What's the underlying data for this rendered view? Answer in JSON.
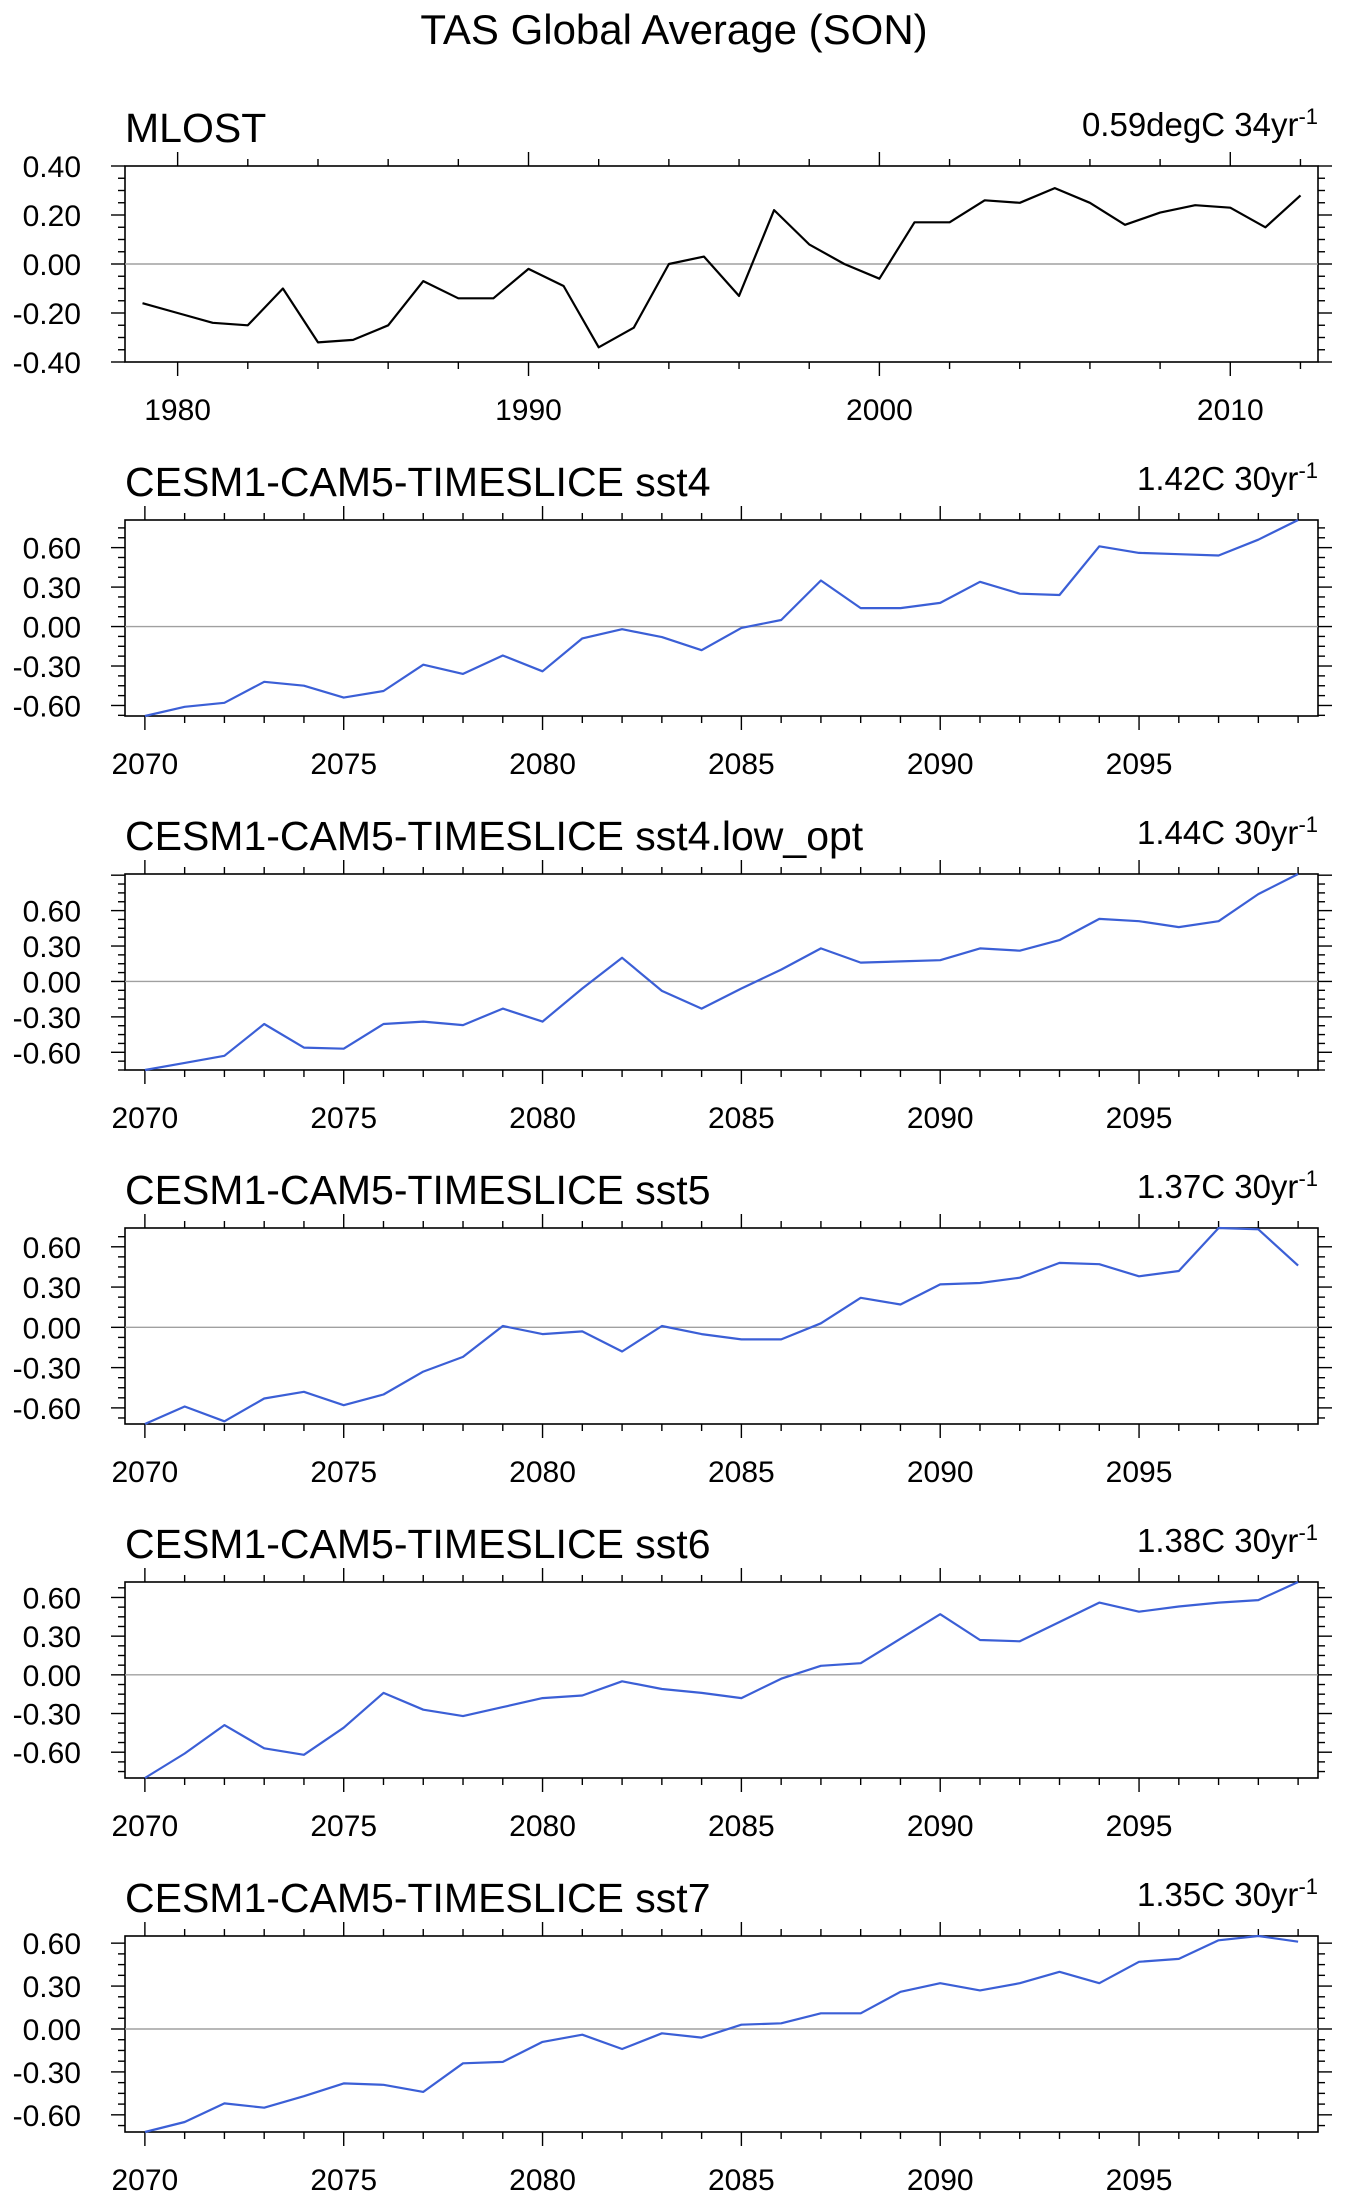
{
  "figure": {
    "title": "TAS Global Average (SON)"
  },
  "colors": {
    "obs_line": "#000000",
    "model_line": "#3b5fd6",
    "zero_line": "#a0a0a0",
    "axis": "#000000"
  },
  "chart_data": [
    {
      "type": "line",
      "title": "MLOST",
      "trend_label": "0.59degC 34yr",
      "trend_exponent": "-1",
      "xlabel": "",
      "ylabel": "",
      "xlim": [
        1978.5,
        2012.5
      ],
      "ylim": [
        -0.4,
        0.4
      ],
      "xticks": [
        1980,
        1990,
        2000,
        2010
      ],
      "yticks": [
        -0.4,
        -0.2,
        0.0,
        0.2,
        0.4
      ],
      "ytick_labels": [
        "-0.40",
        "-0.20",
        "0.00",
        "0.20",
        "0.40"
      ],
      "line_color_key": "obs_line",
      "series": [
        {
          "x": [
            1979,
            1980,
            1981,
            1982,
            1983,
            1984,
            1985,
            1986,
            1987,
            1988,
            1989,
            1990,
            1991,
            1992,
            1993,
            1994,
            1995,
            1996,
            1997,
            1998,
            1999,
            2000,
            2001,
            2002,
            2003,
            2004,
            2005,
            2006,
            2007,
            2008,
            2009,
            2010,
            2011,
            2012
          ],
          "values": [
            -0.16,
            -0.2,
            -0.24,
            -0.25,
            -0.1,
            -0.32,
            -0.31,
            -0.25,
            -0.07,
            -0.14,
            -0.14,
            -0.02,
            -0.09,
            -0.34,
            -0.26,
            0.0,
            0.03,
            -0.13,
            0.22,
            0.08,
            0.0,
            -0.06,
            0.17,
            0.17,
            0.26,
            0.25,
            0.31,
            0.25,
            0.16,
            0.21,
            0.24,
            0.23,
            0.15,
            0.28
          ]
        }
      ]
    },
    {
      "type": "line",
      "title": "CESM1-CAM5-TIMESLICE sst4",
      "trend_label": "1.42C 30yr",
      "trend_exponent": "-1",
      "xlabel": "",
      "ylabel": "",
      "xlim": [
        2069.5,
        2099.5
      ],
      "ylim": [
        -0.68,
        0.81
      ],
      "xticks": [
        2070,
        2075,
        2080,
        2085,
        2090,
        2095
      ],
      "yticks": [
        -0.6,
        -0.3,
        0.0,
        0.3,
        0.6
      ],
      "ytick_labels": [
        "-0.60",
        "-0.30",
        "0.00",
        "0.30",
        "0.60"
      ],
      "line_color_key": "model_line",
      "series": [
        {
          "x": [
            2070,
            2071,
            2072,
            2073,
            2074,
            2075,
            2076,
            2077,
            2078,
            2079,
            2080,
            2081,
            2082,
            2083,
            2084,
            2085,
            2086,
            2087,
            2088,
            2089,
            2090,
            2091,
            2092,
            2093,
            2094,
            2095,
            2096,
            2097,
            2098,
            2099
          ],
          "values": [
            -0.68,
            -0.61,
            -0.58,
            -0.42,
            -0.45,
            -0.54,
            -0.49,
            -0.29,
            -0.36,
            -0.22,
            -0.34,
            -0.09,
            -0.02,
            -0.08,
            -0.18,
            -0.01,
            0.05,
            0.35,
            0.14,
            0.14,
            0.18,
            0.34,
            0.25,
            0.24,
            0.61,
            0.56,
            0.55,
            0.54,
            0.66,
            0.81
          ]
        }
      ]
    },
    {
      "type": "line",
      "title": "CESM1-CAM5-TIMESLICE sst4.low_opt",
      "trend_label": "1.44C 30yr",
      "trend_exponent": "-1",
      "xlabel": "",
      "ylabel": "",
      "xlim": [
        2069.5,
        2099.5
      ],
      "ylim": [
        -0.75,
        0.91
      ],
      "xticks": [
        2070,
        2075,
        2080,
        2085,
        2090,
        2095
      ],
      "yticks": [
        -0.6,
        -0.3,
        0.0,
        0.3,
        0.6
      ],
      "ytick_labels": [
        "-0.60",
        "-0.30",
        "0.00",
        "0.30",
        "0.60"
      ],
      "line_color_key": "model_line",
      "series": [
        {
          "x": [
            2070,
            2071,
            2072,
            2073,
            2074,
            2075,
            2076,
            2077,
            2078,
            2079,
            2080,
            2081,
            2082,
            2083,
            2084,
            2085,
            2086,
            2087,
            2088,
            2089,
            2090,
            2091,
            2092,
            2093,
            2094,
            2095,
            2096,
            2097,
            2098,
            2099
          ],
          "values": [
            -0.75,
            -0.69,
            -0.63,
            -0.36,
            -0.56,
            -0.57,
            -0.36,
            -0.34,
            -0.37,
            -0.23,
            -0.34,
            -0.06,
            0.2,
            -0.08,
            -0.23,
            -0.06,
            0.1,
            0.28,
            0.16,
            0.17,
            0.18,
            0.28,
            0.26,
            0.35,
            0.53,
            0.51,
            0.46,
            0.51,
            0.74,
            0.91
          ]
        }
      ]
    },
    {
      "type": "line",
      "title": "CESM1-CAM5-TIMESLICE sst5",
      "trend_label": "1.37C 30yr",
      "trend_exponent": "-1",
      "xlabel": "",
      "ylabel": "",
      "xlim": [
        2069.5,
        2099.5
      ],
      "ylim": [
        -0.72,
        0.74
      ],
      "xticks": [
        2070,
        2075,
        2080,
        2085,
        2090,
        2095
      ],
      "yticks": [
        -0.6,
        -0.3,
        0.0,
        0.3,
        0.6
      ],
      "ytick_labels": [
        "-0.60",
        "-0.30",
        "0.00",
        "0.30",
        "0.60"
      ],
      "line_color_key": "model_line",
      "series": [
        {
          "x": [
            2070,
            2071,
            2072,
            2073,
            2074,
            2075,
            2076,
            2077,
            2078,
            2079,
            2080,
            2081,
            2082,
            2083,
            2084,
            2085,
            2086,
            2087,
            2088,
            2089,
            2090,
            2091,
            2092,
            2093,
            2094,
            2095,
            2096,
            2097,
            2098,
            2099
          ],
          "values": [
            -0.72,
            -0.59,
            -0.7,
            -0.53,
            -0.48,
            -0.58,
            -0.5,
            -0.33,
            -0.22,
            0.01,
            -0.05,
            -0.03,
            -0.18,
            0.01,
            -0.05,
            -0.09,
            -0.09,
            0.03,
            0.22,
            0.17,
            0.32,
            0.33,
            0.37,
            0.48,
            0.47,
            0.38,
            0.42,
            0.74,
            0.73,
            0.46
          ]
        }
      ]
    },
    {
      "type": "line",
      "title": "CESM1-CAM5-TIMESLICE sst6",
      "trend_label": "1.38C 30yr",
      "trend_exponent": "-1",
      "xlabel": "",
      "ylabel": "",
      "xlim": [
        2069.5,
        2099.5
      ],
      "ylim": [
        -0.8,
        0.72
      ],
      "xticks": [
        2070,
        2075,
        2080,
        2085,
        2090,
        2095
      ],
      "yticks": [
        -0.6,
        -0.3,
        0.0,
        0.3,
        0.6
      ],
      "ytick_labels": [
        "-0.60",
        "-0.30",
        "0.00",
        "0.30",
        "0.60"
      ],
      "line_color_key": "model_line",
      "series": [
        {
          "x": [
            2070,
            2071,
            2072,
            2073,
            2074,
            2075,
            2076,
            2077,
            2078,
            2079,
            2080,
            2081,
            2082,
            2083,
            2084,
            2085,
            2086,
            2087,
            2088,
            2089,
            2090,
            2091,
            2092,
            2093,
            2094,
            2095,
            2096,
            2097,
            2098,
            2099
          ],
          "values": [
            -0.8,
            -0.61,
            -0.39,
            -0.57,
            -0.62,
            -0.41,
            -0.14,
            -0.27,
            -0.32,
            -0.25,
            -0.18,
            -0.16,
            -0.05,
            -0.11,
            -0.14,
            -0.18,
            -0.03,
            0.07,
            0.09,
            0.28,
            0.47,
            0.27,
            0.26,
            0.41,
            0.56,
            0.49,
            0.53,
            0.56,
            0.58,
            0.72
          ]
        }
      ]
    },
    {
      "type": "line",
      "title": "CESM1-CAM5-TIMESLICE sst7",
      "trend_label": "1.35C 30yr",
      "trend_exponent": "-1",
      "xlabel": "",
      "ylabel": "",
      "xlim": [
        2069.5,
        2099.5
      ],
      "ylim": [
        -0.72,
        0.65
      ],
      "xticks": [
        2070,
        2075,
        2080,
        2085,
        2090,
        2095
      ],
      "yticks": [
        -0.6,
        -0.3,
        0.0,
        0.3,
        0.6
      ],
      "ytick_labels": [
        "-0.60",
        "-0.30",
        "0.00",
        "0.30",
        "0.60"
      ],
      "line_color_key": "model_line",
      "series": [
        {
          "x": [
            2070,
            2071,
            2072,
            2073,
            2074,
            2075,
            2076,
            2077,
            2078,
            2079,
            2080,
            2081,
            2082,
            2083,
            2084,
            2085,
            2086,
            2087,
            2088,
            2089,
            2090,
            2091,
            2092,
            2093,
            2094,
            2095,
            2096,
            2097,
            2098,
            2099
          ],
          "values": [
            -0.72,
            -0.65,
            -0.52,
            -0.55,
            -0.47,
            -0.38,
            -0.39,
            -0.44,
            -0.24,
            -0.23,
            -0.09,
            -0.04,
            -0.14,
            -0.03,
            -0.06,
            0.03,
            0.04,
            0.11,
            0.11,
            0.26,
            0.32,
            0.27,
            0.32,
            0.4,
            0.32,
            0.47,
            0.49,
            0.62,
            0.65,
            0.61
          ]
        }
      ]
    }
  ]
}
